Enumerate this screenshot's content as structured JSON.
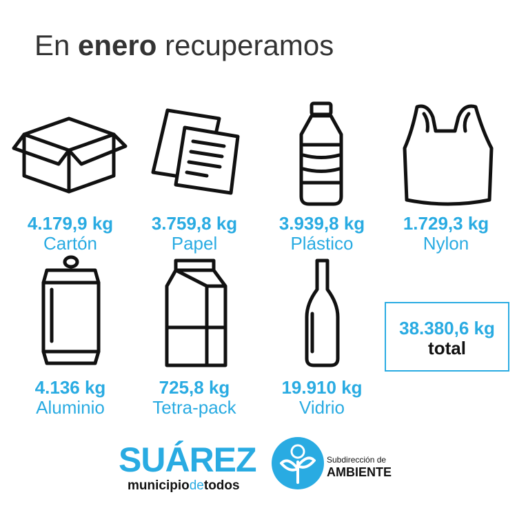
{
  "title": {
    "parts": [
      "En",
      "enero",
      "recuperamos"
    ]
  },
  "items": [
    {
      "amount": "4.179,9 kg",
      "label": "Cartón"
    },
    {
      "amount": "3.759,8 kg",
      "label": "Papel"
    },
    {
      "amount": "3.939,8 kg",
      "label": "Plástico"
    },
    {
      "amount": "1.729,3 kg",
      "label": "Nylon"
    },
    {
      "amount": "4.136 kg",
      "label": "Aluminio"
    },
    {
      "amount": "725,8 kg",
      "label": "Tetra-pack"
    },
    {
      "amount": "19.910 kg",
      "label": "Vidrio"
    }
  ],
  "total": {
    "amount": "38.380,6 kg",
    "label": "total"
  },
  "logo": {
    "name": "SUÁREZ",
    "tagline": [
      "municipio",
      "de",
      "todos"
    ]
  },
  "agency": {
    "line1": "Subdirección de",
    "line2": "AMBIENTE"
  }
}
